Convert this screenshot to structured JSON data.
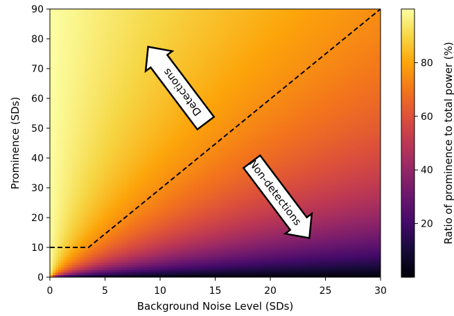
{
  "chart_data": {
    "type": "heatmap",
    "title": "",
    "xlabel": "Background Noise Level (SDs)",
    "ylabel": "Prominence (SDs)",
    "xlim": [
      0,
      30
    ],
    "ylim": [
      0,
      90
    ],
    "x_ticks": [
      "0",
      "5",
      "10",
      "15",
      "20",
      "25",
      "30"
    ],
    "y_ticks": [
      "0",
      "10",
      "20",
      "30",
      "40",
      "50",
      "60",
      "70",
      "80",
      "90"
    ],
    "z_formula": "100 * prominence / (prominence + background_noise)",
    "colormap": "inferno",
    "colorbar": {
      "label": "Ratio of prominence to total power (%)",
      "range": [
        0,
        100
      ],
      "ticks": [
        "20",
        "40",
        "60",
        "80"
      ]
    },
    "threshold_line": {
      "style": "dashed",
      "points": [
        [
          0,
          10
        ],
        [
          3.5,
          10
        ],
        [
          30,
          90
        ]
      ]
    },
    "annotations": {
      "detections": "Detections",
      "non_detections": "Non-detections"
    },
    "colors": {
      "line": "#000000",
      "arrow_fill": "#ffffff",
      "arrow_stroke": "#000000"
    },
    "grid": false
  }
}
